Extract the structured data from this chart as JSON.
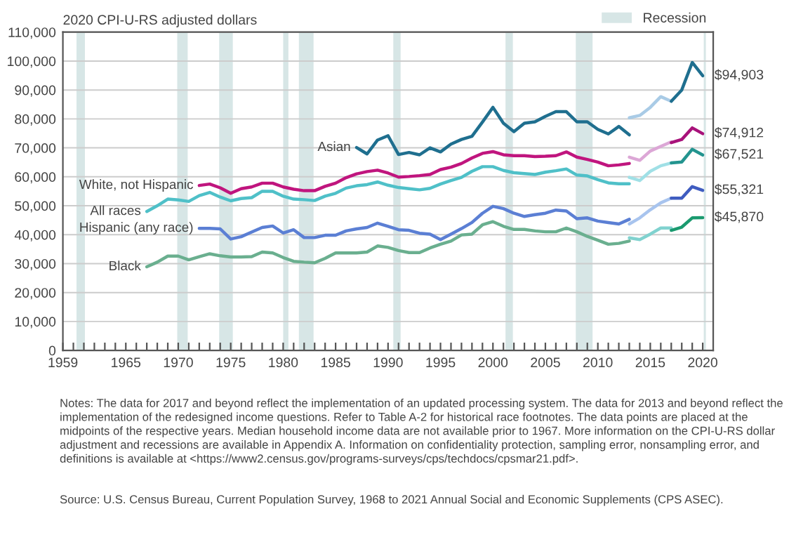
{
  "chart_data": {
    "type": "line",
    "ylabel": "2020 CPI-U-RS adjusted dollars",
    "xlim": [
      1959,
      2021
    ],
    "ylim": [
      0,
      110000
    ],
    "xticks": [
      1959,
      {
        "value": 1960,
        "label": null
      },
      {
        "value": 1961,
        "label": null
      },
      {
        "value": 1962,
        "label": null
      },
      {
        "value": 1963,
        "label": null
      },
      {
        "value": 1964,
        "label": null
      },
      1965,
      {
        "value": 1966,
        "label": null
      },
      {
        "value": 1967,
        "label": null
      },
      {
        "value": 1968,
        "label": null
      },
      {
        "value": 1969,
        "label": null
      },
      1970,
      {
        "value": 1971,
        "label": null
      },
      {
        "value": 1972,
        "label": null
      },
      {
        "value": 1973,
        "label": null
      },
      {
        "value": 1974,
        "label": null
      },
      1975,
      {
        "value": 1976,
        "label": null
      },
      {
        "value": 1977,
        "label": null
      },
      {
        "value": 1978,
        "label": null
      },
      {
        "value": 1979,
        "label": null
      },
      1980,
      {
        "value": 1981,
        "label": null
      },
      {
        "value": 1982,
        "label": null
      },
      {
        "value": 1983,
        "label": null
      },
      {
        "value": 1984,
        "label": null
      },
      1985,
      {
        "value": 1986,
        "label": null
      },
      {
        "value": 1987,
        "label": null
      },
      {
        "value": 1988,
        "label": null
      },
      {
        "value": 1989,
        "label": null
      },
      1990,
      {
        "value": 1991,
        "label": null
      },
      {
        "value": 1992,
        "label": null
      },
      {
        "value": 1993,
        "label": null
      },
      {
        "value": 1994,
        "label": null
      },
      1995,
      {
        "value": 1996,
        "label": null
      },
      {
        "value": 1997,
        "label": null
      },
      {
        "value": 1998,
        "label": null
      },
      {
        "value": 1999,
        "label": null
      },
      2000,
      {
        "value": 2001,
        "label": null
      },
      {
        "value": 2002,
        "label": null
      },
      {
        "value": 2003,
        "label": null
      },
      {
        "value": 2004,
        "label": null
      },
      2005,
      {
        "value": 2006,
        "label": null
      },
      {
        "value": 2007,
        "label": null
      },
      {
        "value": 2008,
        "label": null
      },
      {
        "value": 2009,
        "label": null
      },
      2010,
      {
        "value": 2011,
        "label": null
      },
      {
        "value": 2012,
        "label": null
      },
      {
        "value": 2013,
        "label": null
      },
      {
        "value": 2014,
        "label": null
      },
      2015,
      {
        "value": 2016,
        "label": null
      },
      {
        "value": 2017,
        "label": null
      },
      {
        "value": 2018,
        "label": null
      },
      {
        "value": 2019,
        "label": null
      },
      2020
    ],
    "yticks": [
      0,
      {
        "value": 10000,
        "label": "10,000"
      },
      {
        "value": 20000,
        "label": "20,000"
      },
      {
        "value": 30000,
        "label": "30,000"
      },
      {
        "value": 40000,
        "label": "40,000"
      },
      {
        "value": 50000,
        "label": "50,000"
      },
      {
        "value": 60000,
        "label": "60,000"
      },
      {
        "value": 70000,
        "label": "70,000"
      },
      {
        "value": 80000,
        "label": "80,000"
      },
      {
        "value": 90000,
        "label": "90,000"
      },
      {
        "value": 100000,
        "label": "100,000"
      },
      {
        "value": 110000,
        "label": "110,000"
      }
    ],
    "grid": "y",
    "legend": "top right",
    "marker": "none",
    "line_style": "solid",
    "bands": [
      {
        "axis": "x",
        "from": 1960.3,
        "to": 1961.1,
        "label": "Recession",
        "color": "#d7e6e6"
      },
      {
        "axis": "x",
        "from": 1969.9,
        "to": 1970.9,
        "color": "#d7e6e6"
      },
      {
        "axis": "x",
        "from": 1973.9,
        "to": 1975.2,
        "color": "#d7e6e6"
      },
      {
        "axis": "x",
        "from": 1980.0,
        "to": 1980.5,
        "color": "#d7e6e6"
      },
      {
        "axis": "x",
        "from": 1981.5,
        "to": 1982.9,
        "color": "#d7e6e6"
      },
      {
        "axis": "x",
        "from": 1990.5,
        "to": 1991.2,
        "color": "#d7e6e6"
      },
      {
        "axis": "x",
        "from": 2001.2,
        "to": 2001.9,
        "color": "#d7e6e6"
      },
      {
        "axis": "x",
        "from": 2007.9,
        "to": 2009.5,
        "color": "#d7e6e6"
      },
      {
        "axis": "x",
        "from": 2020.1,
        "to": 2020.3,
        "color": "#d7e6e6"
      }
    ],
    "series": [
      {
        "name": "Asian",
        "color": "#1f6f8f",
        "x": [
          1987,
          1988,
          1989,
          1990,
          1991,
          1992,
          1993,
          1994,
          1995,
          1996,
          1997,
          1998,
          1999,
          2000,
          2001,
          2002,
          2003,
          2004,
          2005,
          2006,
          2007,
          2008,
          2009,
          2010,
          2011,
          2012,
          2013
        ],
        "values": [
          70100,
          67900,
          72700,
          74200,
          67700,
          68400,
          67600,
          70000,
          68600,
          71300,
          72900,
          74000,
          78900,
          84000,
          78500,
          75600,
          78500,
          79000,
          80900,
          82500,
          82500,
          79000,
          79000,
          76400,
          74800,
          77400,
          74500
        ]
      },
      {
        "color": "#a9cbe6",
        "x": [
          2013,
          2014,
          2015,
          2016,
          2017
        ],
        "values": [
          80400,
          81200,
          84000,
          87700,
          86100
        ]
      },
      {
        "color": "#1f6f8f",
        "x": [
          2017,
          2018,
          2019,
          2020
        ],
        "values": [
          86100,
          90000,
          99500,
          94903
        ],
        "value_labels": [
          null,
          null,
          null,
          "$94,903"
        ]
      },
      {
        "name": "White, not Hispanic",
        "color": "#c0157e",
        "x": [
          1972,
          1973,
          1974,
          1975,
          1976,
          1977,
          1978,
          1979,
          1980,
          1981,
          1982,
          1983,
          1984,
          1985,
          1986,
          1987,
          1988,
          1989,
          1990,
          1991,
          1992,
          1993,
          1994,
          1995,
          1996,
          1997,
          1998,
          1999,
          2000,
          2001,
          2002,
          2003,
          2004,
          2005,
          2006,
          2007,
          2008,
          2009,
          2010,
          2011,
          2012,
          2013
        ],
        "values": [
          57000,
          57500,
          56200,
          54300,
          55900,
          56500,
          57800,
          57800,
          56500,
          55700,
          55200,
          55200,
          56700,
          57800,
          59700,
          61000,
          61800,
          62300,
          61300,
          59900,
          60100,
          60400,
          60800,
          62500,
          63300,
          64600,
          66500,
          68100,
          68700,
          67600,
          67300,
          67300,
          67000,
          67100,
          67300,
          68600,
          66800,
          66000,
          65100,
          63800,
          64100,
          64600
        ]
      },
      {
        "color": "#dca7d6",
        "x": [
          2013,
          2014,
          2015,
          2016,
          2017
        ],
        "values": [
          66800,
          65700,
          68900,
          70500,
          72100
        ]
      },
      {
        "color": "#a8127a",
        "x": [
          2017,
          2018,
          2019,
          2020
        ],
        "values": [
          71800,
          72900,
          76900,
          74912
        ],
        "value_labels": [
          null,
          null,
          null,
          "$74,912"
        ]
      },
      {
        "name": "All races",
        "color": "#4fc0c8",
        "x": [
          1967,
          1968,
          1969,
          1970,
          1971,
          1972,
          1973,
          1974,
          1975,
          1976,
          1977,
          1978,
          1979,
          1980,
          1981,
          1982,
          1983,
          1984,
          1985,
          1986,
          1987,
          1988,
          1989,
          1990,
          1991,
          1992,
          1993,
          1994,
          1995,
          1996,
          1997,
          1998,
          1999,
          2000,
          2001,
          2002,
          2003,
          2004,
          2005,
          2006,
          2007,
          2008,
          2009,
          2010,
          2011,
          2012,
          2013
        ],
        "values": [
          48000,
          50000,
          52300,
          52000,
          51500,
          53500,
          54600,
          53000,
          51700,
          52500,
          52800,
          55000,
          55000,
          53300,
          52300,
          52100,
          51800,
          53300,
          54300,
          56100,
          56900,
          57300,
          58200,
          57100,
          56300,
          55900,
          55500,
          56000,
          57500,
          58700,
          59800,
          61900,
          63500,
          63500,
          62200,
          61400,
          61100,
          60800,
          61600,
          62100,
          62700,
          60600,
          60300,
          59000,
          57900,
          57600,
          57600
        ]
      },
      {
        "color": "#a0e0e6",
        "x": [
          2013,
          2014,
          2015,
          2016,
          2017
        ],
        "values": [
          59800,
          58700,
          61900,
          63800,
          64800
        ]
      },
      {
        "color": "#23948f",
        "x": [
          2017,
          2018,
          2019,
          2020
        ],
        "values": [
          64800,
          65100,
          69500,
          67521
        ],
        "value_labels": [
          null,
          null,
          null,
          "$67,521"
        ]
      },
      {
        "name": "Hispanic (any race)",
        "color": "#5b7fd4",
        "x": [
          1972,
          1973,
          1974,
          1975,
          1976,
          1977,
          1978,
          1979,
          1980,
          1981,
          1982,
          1983,
          1984,
          1985,
          1986,
          1987,
          1988,
          1989,
          1990,
          1991,
          1992,
          1993,
          1994,
          1995,
          1996,
          1997,
          1998,
          1999,
          2000,
          2001,
          2002,
          2003,
          2004,
          2005,
          2006,
          2007,
          2008,
          2009,
          2010,
          2011,
          2012,
          2013
        ],
        "values": [
          42200,
          42200,
          42000,
          38500,
          39300,
          40900,
          42500,
          43000,
          40600,
          41700,
          39000,
          39000,
          39800,
          39800,
          41300,
          42000,
          42500,
          44000,
          42900,
          41700,
          41500,
          40500,
          40200,
          38300,
          40200,
          42100,
          44200,
          47400,
          49800,
          49000,
          47400,
          46300,
          46900,
          47400,
          48500,
          48200,
          45500,
          45800,
          44700,
          44200,
          43700,
          45300
        ]
      },
      {
        "color": "#a8c4ee",
        "x": [
          2013,
          2014,
          2015,
          2016,
          2017
        ],
        "values": [
          43700,
          45800,
          48600,
          51000,
          52600
        ]
      },
      {
        "color": "#3f5cc0",
        "x": [
          2017,
          2018,
          2019,
          2020
        ],
        "values": [
          52600,
          52600,
          56600,
          55321
        ],
        "value_labels": [
          null,
          null,
          null,
          "$55,321"
        ]
      },
      {
        "name": "Black",
        "color": "#6aaf8f",
        "x": [
          1967,
          1968,
          1969,
          1970,
          1971,
          1972,
          1973,
          1974,
          1975,
          1976,
          1977,
          1978,
          1979,
          1980,
          1981,
          1982,
          1983,
          1984,
          1985,
          1986,
          1987,
          1988,
          1989,
          1990,
          1991,
          1992,
          1993,
          1994,
          1995,
          1996,
          1997,
          1998,
          1999,
          2000,
          2001,
          2002,
          2003,
          2004,
          2005,
          2006,
          2007,
          2008,
          2009,
          2010,
          2011,
          2012,
          2013
        ],
        "values": [
          28900,
          30500,
          32600,
          32600,
          31300,
          32400,
          33400,
          32700,
          32300,
          32300,
          32400,
          34000,
          33700,
          32100,
          30800,
          30500,
          30300,
          31800,
          33700,
          33700,
          33700,
          34000,
          36100,
          35600,
          34500,
          33800,
          33800,
          35400,
          36700,
          37800,
          39900,
          40200,
          43400,
          44500,
          42900,
          41800,
          41800,
          41300,
          41000,
          41000,
          42300,
          41000,
          39400,
          38100,
          36700,
          37000,
          37800
        ]
      },
      {
        "color": "#80d2cf",
        "x": [
          2013,
          2014,
          2015,
          2016,
          2017
        ],
        "values": [
          38900,
          38300,
          40200,
          42300,
          42300
        ]
      },
      {
        "color": "#1a9a6f",
        "x": [
          2017,
          2018,
          2019,
          2020
        ],
        "values": [
          41500,
          42600,
          45800,
          45870
        ],
        "value_labels": [
          null,
          null,
          null,
          "$45,870"
        ]
      }
    ],
    "annotations": [
      "Notes: The data for 2017 and beyond reflect the implementation of an updated processing system. The data for 2013 and beyond reflect the implementation of the redesigned income questions. Refer to Table A-2 for historical race footnotes. The data points are placed at the midpoints of the respective years. Median household income data are not available prior to 1967. More information on the CPI-U-RS dollar adjustment and recessions are available in Appendix A. Information on confidentiality protection, sampling error, nonsampling error, and definitions is available at <https://www2.census.gov/programs-surveys/cps/techdocs/cpsmar21.pdf>.",
      "Source: U.S. Census Bureau, Current Population Survey, 1968 to 2021 Annual Social and Economic Supplements (CPS ASEC)."
    ]
  }
}
